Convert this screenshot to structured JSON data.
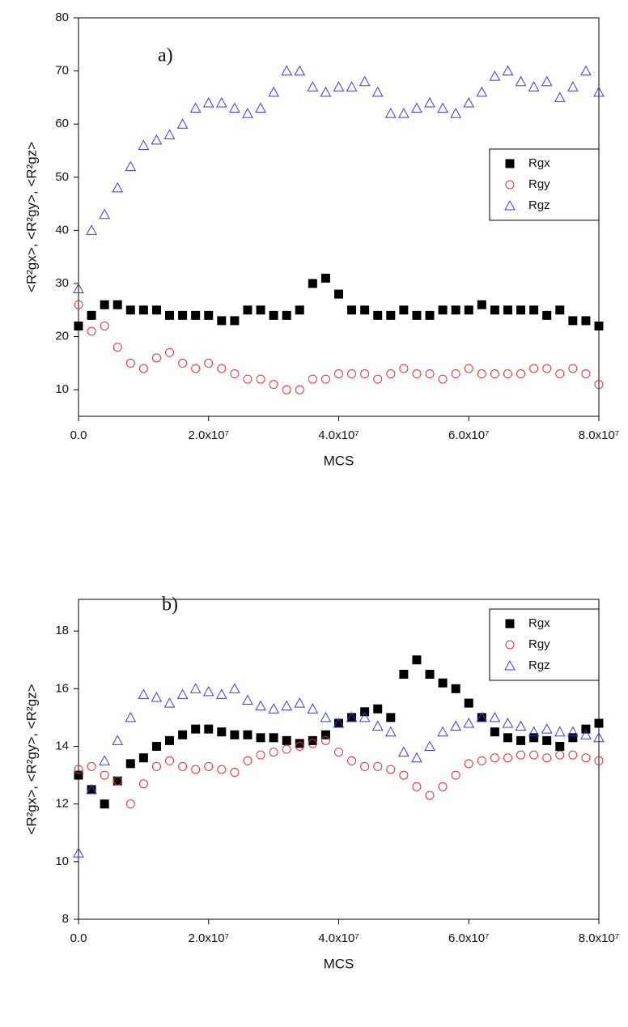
{
  "chart_data": [
    {
      "type": "scatter",
      "annotation": "a)",
      "xlabel": "MCS",
      "ylabel": "<R²gx>, <R²gy>, <R²gz>",
      "x": [
        0,
        2000000,
        4000000,
        6000000,
        8000000,
        10000000,
        12000000,
        14000000,
        16000000,
        18000000,
        20000000,
        22000000,
        24000000,
        26000000,
        28000000,
        30000000,
        32000000,
        34000000,
        36000000,
        38000000,
        40000000,
        42000000,
        44000000,
        46000000,
        48000000,
        50000000,
        52000000,
        54000000,
        56000000,
        58000000,
        60000000,
        62000000,
        64000000,
        66000000,
        68000000,
        70000000,
        72000000,
        74000000,
        76000000,
        78000000,
        80000000
      ],
      "series": [
        {
          "name": "Rgx",
          "color": "#000000",
          "marker": "square",
          "filled": true,
          "values": [
            22,
            24,
            26,
            26,
            25,
            25,
            25,
            24,
            24,
            24,
            24,
            23,
            23,
            25,
            25,
            24,
            24,
            25,
            30,
            31,
            28,
            25,
            25,
            24,
            24,
            25,
            24,
            24,
            25,
            25,
            25,
            26,
            25,
            25,
            25,
            25,
            24,
            25,
            23,
            23,
            22
          ]
        },
        {
          "name": "Rgy",
          "color": "#e03030",
          "marker": "circle",
          "filled": false,
          "values": [
            26,
            21,
            22,
            18,
            15,
            14,
            16,
            17,
            15,
            14,
            15,
            14,
            13,
            12,
            12,
            11,
            10,
            10,
            12,
            12,
            13,
            13,
            13,
            12,
            13,
            14,
            13,
            13,
            12,
            13,
            14,
            13,
            13,
            13,
            13,
            14,
            14,
            13,
            14,
            13,
            11
          ]
        },
        {
          "name": "Rgz",
          "color": "#3a3ae0",
          "marker": "triangle",
          "filled": false,
          "values": [
            29,
            40,
            43,
            48,
            52,
            56,
            57,
            58,
            60,
            63,
            64,
            64,
            63,
            62,
            63,
            66,
            70,
            70,
            67,
            66,
            67,
            67,
            68,
            66,
            62,
            62,
            63,
            64,
            63,
            62,
            64,
            66,
            69,
            70,
            68,
            67,
            68,
            65,
            67,
            70,
            66
          ]
        }
      ],
      "xlim": [
        0,
        80000000
      ],
      "ylim": [
        5,
        80
      ],
      "xticks": [
        {
          "value": 0,
          "label": "0.0"
        },
        {
          "value": 20000000,
          "label": "2.0x10⁷"
        },
        {
          "value": 40000000,
          "label": "4.0x10⁷"
        },
        {
          "value": 60000000,
          "label": "6.0x10⁷"
        },
        {
          "value": 80000000,
          "label": "8.0x10⁷"
        }
      ],
      "yticks": [
        10,
        20,
        30,
        40,
        50,
        60,
        70,
        80
      ],
      "legend": "center right"
    },
    {
      "type": "scatter",
      "annotation": "b)",
      "xlabel": "MCS",
      "ylabel": "<R²gx>, <R²gy>, <R²gz>",
      "x": [
        0,
        2000000,
        4000000,
        6000000,
        8000000,
        10000000,
        12000000,
        14000000,
        16000000,
        18000000,
        20000000,
        22000000,
        24000000,
        26000000,
        28000000,
        30000000,
        32000000,
        34000000,
        36000000,
        38000000,
        40000000,
        42000000,
        44000000,
        46000000,
        48000000,
        50000000,
        52000000,
        54000000,
        56000000,
        58000000,
        60000000,
        62000000,
        64000000,
        66000000,
        68000000,
        70000000,
        72000000,
        74000000,
        76000000,
        78000000,
        80000000
      ],
      "series": [
        {
          "name": "Rgx",
          "color": "#000000",
          "marker": "square",
          "filled": true,
          "values": [
            13,
            12.5,
            12,
            12.8,
            13.4,
            13.6,
            14,
            14.2,
            14.4,
            14.6,
            14.6,
            14.5,
            14.4,
            14.4,
            14.3,
            14.3,
            14.2,
            14.1,
            14.2,
            14.4,
            14.8,
            15,
            15.2,
            15.3,
            15,
            16.5,
            17,
            16.5,
            16.2,
            16,
            15.5,
            15,
            14.5,
            14.3,
            14.2,
            14.3,
            14.2,
            14,
            14.3,
            14.6,
            14.8
          ]
        },
        {
          "name": "Rgy",
          "color": "#e03030",
          "marker": "circle",
          "filled": false,
          "values": [
            13.2,
            13.3,
            13,
            12.8,
            12,
            12.7,
            13.3,
            13.5,
            13.3,
            13.2,
            13.3,
            13.2,
            13.1,
            13.5,
            13.7,
            13.8,
            13.9,
            14,
            14.1,
            14.2,
            13.8,
            13.5,
            13.3,
            13.3,
            13.2,
            13,
            12.6,
            12.3,
            12.6,
            13,
            13.4,
            13.5,
            13.6,
            13.6,
            13.7,
            13.7,
            13.6,
            13.7,
            13.7,
            13.6,
            13.5
          ]
        },
        {
          "name": "Rgz",
          "color": "#3a3ae0",
          "marker": "triangle",
          "filled": false,
          "values": [
            10.3,
            12.5,
            13.5,
            14.2,
            15,
            15.8,
            15.7,
            15.5,
            15.8,
            16,
            15.9,
            15.8,
            16,
            15.6,
            15.4,
            15.3,
            15.4,
            15.5,
            15.3,
            15,
            14.8,
            15,
            15,
            14.7,
            14.5,
            13.8,
            13.6,
            14,
            14.5,
            14.7,
            14.8,
            15,
            15,
            14.8,
            14.7,
            14.5,
            14.6,
            14.5,
            14.5,
            14.4,
            14.3
          ]
        }
      ],
      "xlim": [
        0,
        80000000
      ],
      "ylim": [
        8,
        19.1
      ],
      "xticks": [
        {
          "value": 0,
          "label": "0.0"
        },
        {
          "value": 20000000,
          "label": "2.0x10⁷"
        },
        {
          "value": 40000000,
          "label": "4.0x10⁷"
        },
        {
          "value": 60000000,
          "label": "6.0x10⁷"
        },
        {
          "value": 80000000,
          "label": "8.0x10⁷"
        }
      ],
      "yticks": [
        8,
        10,
        12,
        14,
        16,
        18
      ],
      "legend": "upper right"
    }
  ]
}
